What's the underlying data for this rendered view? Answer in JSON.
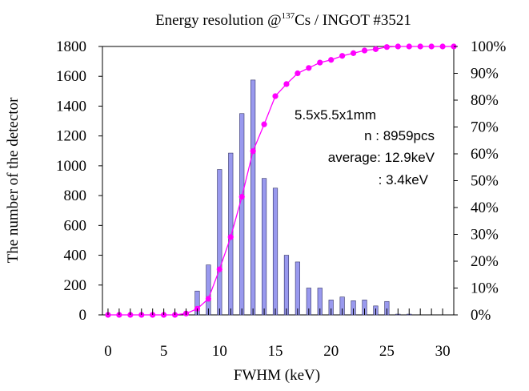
{
  "chart_data": {
    "type": "bar",
    "title_main": "Energy resolution @",
    "title_sup": "137",
    "title_rest": "Cs  / INGOT #3521",
    "xlabel": "FWHM (keV)",
    "ylabel": "The number of the detector",
    "xlim": [
      -0.5,
      31
    ],
    "ylim": [
      0,
      1800
    ],
    "y2lim": [
      0,
      100
    ],
    "x_ticks": [
      0,
      5,
      10,
      15,
      20,
      25,
      30
    ],
    "x_tick_labels": [
      "0",
      "5",
      "10",
      "15",
      "20",
      "25",
      "30"
    ],
    "y_ticks": [
      0,
      200,
      400,
      600,
      800,
      1000,
      1200,
      1400,
      1600,
      1800
    ],
    "y_tick_labels": [
      "0",
      "200",
      "400",
      "600",
      "800",
      "1000",
      "1200",
      "1400",
      "1600",
      "1800"
    ],
    "y2_ticks": [
      0,
      10,
      20,
      30,
      40,
      50,
      60,
      70,
      80,
      90,
      100
    ],
    "y2_tick_labels": [
      "0%",
      "10%",
      "20%",
      "30%",
      "40%",
      "50%",
      "60%",
      "70%",
      "80%",
      "90%",
      "100%"
    ],
    "grid": false,
    "series": [
      {
        "type": "bar",
        "axis": "left",
        "color": "#9999ee",
        "x": [
          0,
          1,
          2,
          3,
          4,
          5,
          6,
          7,
          8,
          9,
          10,
          11,
          12,
          13,
          14,
          15,
          16,
          17,
          18,
          19,
          20,
          21,
          22,
          23,
          24,
          25,
          26,
          27,
          28,
          29,
          30,
          31
        ],
        "values": [
          0,
          0,
          0,
          0,
          0,
          0,
          0,
          10,
          160,
          335,
          975,
          1085,
          1350,
          1575,
          915,
          850,
          400,
          355,
          180,
          180,
          100,
          120,
          95,
          100,
          60,
          90,
          5,
          5,
          0,
          0,
          0,
          0
        ]
      },
      {
        "type": "line",
        "axis": "right",
        "color": "#ff00ff",
        "x": [
          0,
          1,
          2,
          3,
          4,
          5,
          6,
          7,
          8,
          9,
          10,
          11,
          12,
          13,
          14,
          15,
          16,
          17,
          18,
          19,
          20,
          21,
          22,
          23,
          24,
          25,
          26,
          27,
          28,
          29,
          30,
          31
        ],
        "values": [
          0,
          0,
          0,
          0,
          0,
          0,
          0,
          0.5,
          2.3,
          6,
          17,
          29,
          44,
          61,
          71,
          81.5,
          86,
          90,
          92,
          94,
          95,
          96.5,
          97.5,
          98.5,
          99,
          99.8,
          100,
          100,
          100,
          100,
          100,
          100
        ]
      }
    ],
    "annotations": [
      "5.5x5.5x1mm",
      "n : 8959pcs",
      "average: 12.9keV",
      ": 3.4keV"
    ]
  }
}
